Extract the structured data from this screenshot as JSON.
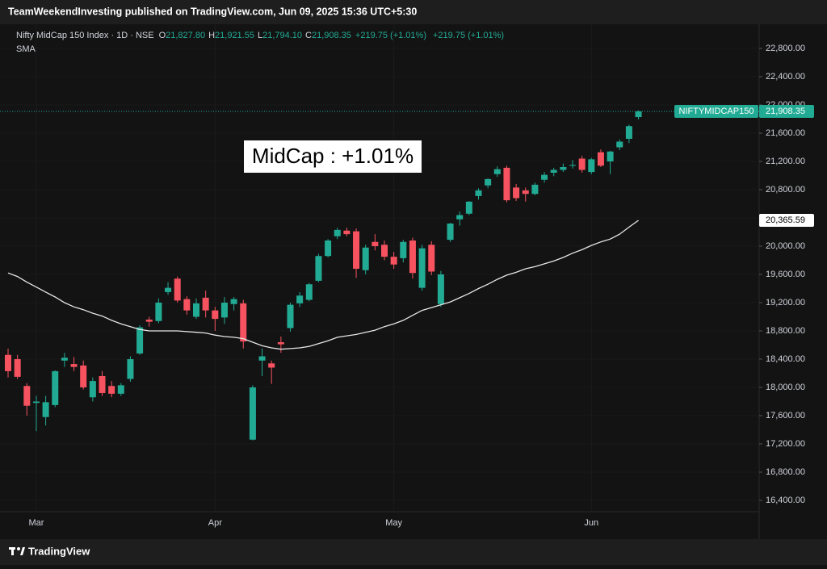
{
  "header": {
    "text": "TeamWeekendInvesting published on TradingView.com, Jun 09, 2025 15:36 UTC+5:30"
  },
  "footer": {
    "brand": "TradingView"
  },
  "chart_data": {
    "type": "candlestick",
    "annotation": "MidCap : +1.01%",
    "legend": {
      "ohlc": [
        {
          "key": "O",
          "value": "21,827.80"
        },
        {
          "key": "H",
          "value": "21,921.55"
        },
        {
          "key": "L",
          "value": "21,794.10"
        },
        {
          "key": "C",
          "value": "21,908.35"
        }
      ],
      "change": "+219.75 (+1.01%)",
      "change2": "+219.75 (+1.01%)"
    },
    "categories": [
      null,
      null,
      null,
      "Mar",
      null,
      null,
      null,
      null,
      null,
      null,
      null,
      null,
      null,
      null,
      null,
      null,
      null,
      null,
      null,
      null,
      null,
      null,
      "Apr",
      null,
      null,
      null,
      null,
      null,
      null,
      null,
      null,
      null,
      null,
      null,
      null,
      null,
      null,
      null,
      null,
      null,
      null,
      "May",
      null,
      null,
      null,
      null,
      null,
      null,
      null,
      null,
      null,
      null,
      null,
      null,
      null,
      null,
      null,
      null,
      null,
      null,
      null,
      null,
      "Jun",
      null,
      null,
      null,
      null,
      null
    ],
    "series": [
      {
        "name": "Nifty MidCap 150 Index · 1D · NSE",
        "tag": "NIFTYMIDCAP150",
        "last_label": "21,908.35",
        "up_color": "#22ab94",
        "down_color": "#f7525f",
        "open": [
          18460,
          18400,
          18020,
          17780,
          17580,
          17750,
          18380,
          18330,
          18310,
          17860,
          18160,
          18020,
          17910,
          18120,
          18480,
          18960,
          18940,
          19350,
          19540,
          19250,
          19000,
          19270,
          19090,
          18990,
          19180,
          19190,
          17260,
          18380,
          18340,
          18640,
          18840,
          19190,
          19240,
          19510,
          19860,
          20140,
          20220,
          20210,
          19660,
          20060,
          20020,
          19850,
          19830,
          20080,
          19410,
          20020,
          19180,
          20090,
          20380,
          20460,
          20710,
          20860,
          21020,
          21110,
          20830,
          20790,
          20740,
          20940,
          21040,
          21080,
          21140,
          21240,
          21050,
          21330,
          21200,
          21400,
          21520,
          21827.8
        ],
        "high": [
          18550,
          18460,
          18060,
          17880,
          17880,
          18240,
          18490,
          18430,
          18380,
          18140,
          18230,
          18090,
          18060,
          18440,
          18880,
          19000,
          19260,
          19490,
          19570,
          19290,
          19260,
          19370,
          19140,
          19280,
          19280,
          19240,
          18030,
          18550,
          18380,
          18720,
          19200,
          19350,
          19480,
          19890,
          20100,
          20260,
          20260,
          20250,
          20020,
          20170,
          20080,
          19920,
          20090,
          20120,
          20020,
          20070,
          19650,
          20330,
          20490,
          20640,
          20820,
          20960,
          21130,
          21140,
          20880,
          20830,
          20900,
          21050,
          21110,
          21170,
          21220,
          21280,
          21250,
          21370,
          21350,
          21510,
          21720,
          21921.55
        ],
        "low": [
          18140,
          18120,
          17600,
          17380,
          17460,
          17720,
          18290,
          18230,
          17970,
          17800,
          17880,
          17860,
          17880,
          18080,
          18460,
          18860,
          18910,
          19310,
          19200,
          19030,
          18970,
          18990,
          18800,
          18900,
          19090,
          18550,
          17250,
          18160,
          18050,
          18490,
          18790,
          19140,
          19220,
          19490,
          19840,
          20100,
          20140,
          19550,
          19600,
          19940,
          19800,
          19680,
          19770,
          19540,
          19370,
          19590,
          19140,
          20060,
          20290,
          20440,
          20660,
          20820,
          20980,
          20620,
          20640,
          20630,
          20720,
          20900,
          20990,
          21050,
          21100,
          21040,
          21020,
          21120,
          21020,
          21360,
          21460,
          21794.1
        ],
        "close": [
          18230,
          18150,
          17740,
          17800,
          17790,
          18230,
          18420,
          18290,
          18000,
          18090,
          17920,
          17910,
          18030,
          18400,
          18850,
          18930,
          19200,
          19410,
          19230,
          19090,
          19190,
          19090,
          18970,
          19200,
          19250,
          18650,
          18000,
          18440,
          18280,
          18610,
          19170,
          19300,
          19460,
          19860,
          20080,
          20230,
          20170,
          19680,
          19980,
          20000,
          19850,
          19740,
          20060,
          19620,
          19970,
          19640,
          19600,
          20320,
          20440,
          20630,
          20790,
          20950,
          21090,
          20650,
          20680,
          20740,
          20870,
          21010,
          21080,
          21120,
          21150,
          21080,
          21230,
          21140,
          21340,
          21480,
          21700,
          21908.35
        ]
      },
      {
        "name": "SMA",
        "type": "line",
        "color": "#e6e6e6",
        "last_label": "20,365.59",
        "values": [
          19620,
          19570,
          19490,
          19420,
          19350,
          19280,
          19200,
          19140,
          19100,
          19050,
          19010,
          18950,
          18900,
          18860,
          18820,
          18800,
          18800,
          18800,
          18800,
          18790,
          18780,
          18770,
          18740,
          18720,
          18710,
          18690,
          18640,
          18590,
          18560,
          18540,
          18550,
          18560,
          18580,
          18620,
          18660,
          18710,
          18730,
          18750,
          18780,
          18810,
          18860,
          18900,
          18950,
          19020,
          19090,
          19130,
          19170,
          19210,
          19270,
          19330,
          19400,
          19460,
          19530,
          19590,
          19630,
          19680,
          19710,
          19750,
          19790,
          19840,
          19900,
          19950,
          20010,
          20060,
          20100,
          20170,
          20270,
          20365.59
        ]
      }
    ],
    "ylim": [
      15851,
      23143
    ],
    "yticks": [
      {
        "value": 16400,
        "label": "16,400.00"
      },
      {
        "value": 16800,
        "label": "16,800.00"
      },
      {
        "value": 17200,
        "label": "17,200.00"
      },
      {
        "value": 17600,
        "label": "17,600.00"
      },
      {
        "value": 18000,
        "label": "18,000.00"
      },
      {
        "value": 18400,
        "label": "18,400.00"
      },
      {
        "value": 18800,
        "label": "18,800.00"
      },
      {
        "value": 19200,
        "label": "19,200.00"
      },
      {
        "value": 19600,
        "label": "19,600.00"
      },
      {
        "value": 20000,
        "label": "20,000.00"
      },
      {
        "value": 20400,
        "label": "20,400.00"
      },
      {
        "value": 20800,
        "label": "20,800.00"
      },
      {
        "value": 21200,
        "label": "21,200.00"
      },
      {
        "value": 21600,
        "label": "21,600.00"
      },
      {
        "value": 22000,
        "label": "22,000.00"
      },
      {
        "value": 22400,
        "label": "22,400.00"
      },
      {
        "value": 22800,
        "label": "22,800.00"
      }
    ],
    "grid": true
  }
}
